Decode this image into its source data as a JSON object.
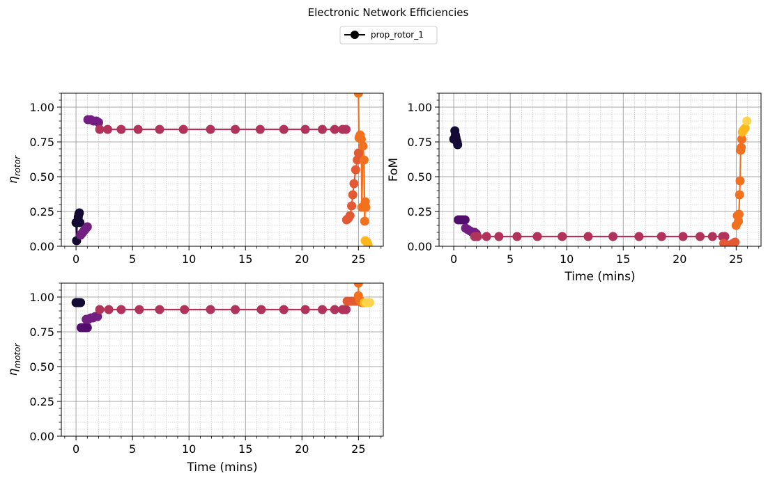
{
  "figure": {
    "title": "Electronic Network Efficiencies"
  },
  "legend": {
    "label": "prop_rotor_1",
    "color": "#000000"
  },
  "palette": {
    "segment_colors": [
      "#140b34",
      "#520e6d",
      "#721f81",
      "#b1325a",
      "#e35933",
      "#f1711f",
      "#fbb81d",
      "#fcd44f"
    ]
  },
  "chart_data": [
    {
      "type": "scatter",
      "id": "rotor",
      "ylabel_main": "η",
      "ylabel_sub": "rotor",
      "xlabel": "",
      "xlim": [
        -1.3,
        27.2
      ],
      "ylim": [
        0,
        1.1
      ],
      "xticks": [
        0,
        5,
        10,
        15,
        20,
        25
      ],
      "yticks": [
        "0.00",
        "0.25",
        "0.50",
        "0.75",
        "1.00"
      ],
      "grid": true,
      "series": [
        {
          "color_index": 0,
          "points": [
            [
              0.0,
              0.17
            ],
            [
              0.05,
              0.04
            ],
            [
              0.1,
              0.17
            ],
            [
              0.15,
              0.18
            ],
            [
              0.2,
              0.21
            ],
            [
              0.25,
              0.23
            ],
            [
              0.3,
              0.24
            ],
            [
              0.35,
              0.17
            ]
          ]
        },
        {
          "color_index": 2,
          "points": [
            [
              0.4,
              0.08
            ],
            [
              0.5,
              0.09
            ],
            [
              0.6,
              0.1
            ],
            [
              0.7,
              0.11
            ],
            [
              0.8,
              0.12
            ],
            [
              0.9,
              0.13
            ],
            [
              1.0,
              0.14
            ]
          ]
        },
        {
          "color_index": 2,
          "points": [
            [
              1.05,
              0.91
            ],
            [
              1.3,
              0.91
            ],
            [
              1.55,
              0.9
            ],
            [
              1.8,
              0.9
            ],
            [
              2.0,
              0.89
            ]
          ]
        },
        {
          "color_index": 3,
          "points": [
            [
              2.1,
              0.84
            ],
            [
              2.8,
              0.84
            ],
            [
              4.0,
              0.84
            ],
            [
              5.5,
              0.84
            ],
            [
              7.4,
              0.84
            ],
            [
              9.5,
              0.84
            ],
            [
              11.9,
              0.84
            ],
            [
              14.1,
              0.84
            ],
            [
              16.3,
              0.84
            ],
            [
              18.4,
              0.84
            ],
            [
              20.3,
              0.84
            ],
            [
              21.8,
              0.84
            ],
            [
              22.9,
              0.84
            ],
            [
              23.6,
              0.84
            ],
            [
              23.9,
              0.84
            ]
          ]
        },
        {
          "color_index": 4,
          "points": [
            [
              23.95,
              0.19
            ],
            [
              24.1,
              0.2
            ],
            [
              24.25,
              0.22
            ],
            [
              24.4,
              0.29
            ],
            [
              24.5,
              0.37
            ],
            [
              24.6,
              0.45
            ],
            [
              24.75,
              0.55
            ],
            [
              24.9,
              0.62
            ],
            [
              25.0,
              0.67
            ]
          ]
        },
        {
          "color_index": 5,
          "points": [
            [
              25.0,
              1.1
            ],
            [
              25.05,
              0.78
            ],
            [
              25.15,
              0.8
            ],
            [
              25.25,
              0.77
            ],
            [
              25.3,
              0.28
            ],
            [
              25.4,
              0.72
            ],
            [
              25.5,
              0.62
            ],
            [
              25.55,
              0.18
            ],
            [
              25.6,
              0.32
            ],
            [
              25.65,
              0.28
            ]
          ]
        },
        {
          "color_index": 6,
          "points": [
            [
              25.6,
              0.04
            ],
            [
              25.75,
              0.03
            ],
            [
              25.85,
              0.01
            ]
          ]
        }
      ]
    },
    {
      "type": "scatter",
      "id": "fom",
      "ylabel_main": "FoM",
      "ylabel_sub": "",
      "xlabel": "Time (mins)",
      "xlim": [
        -1.3,
        27.2
      ],
      "ylim": [
        0,
        1.1
      ],
      "xticks": [
        0,
        5,
        10,
        15,
        20,
        25
      ],
      "yticks": [
        "0.00",
        "0.25",
        "0.50",
        "0.75",
        "1.00"
      ],
      "grid": true,
      "series": [
        {
          "color_index": 0,
          "points": [
            [
              0.0,
              0.77
            ],
            [
              0.1,
              0.83
            ],
            [
              0.15,
              0.8
            ],
            [
              0.2,
              0.78
            ],
            [
              0.25,
              0.76
            ],
            [
              0.3,
              0.75
            ],
            [
              0.35,
              0.73
            ]
          ]
        },
        {
          "color_index": 1,
          "points": [
            [
              0.4,
              0.19
            ],
            [
              0.6,
              0.19
            ],
            [
              0.8,
              0.19
            ],
            [
              1.0,
              0.19
            ]
          ]
        },
        {
          "color_index": 2,
          "points": [
            [
              1.05,
              0.13
            ],
            [
              1.25,
              0.12
            ],
            [
              1.45,
              0.11
            ],
            [
              1.65,
              0.1
            ],
            [
              1.85,
              0.1
            ],
            [
              2.0,
              0.09
            ]
          ]
        },
        {
          "color_index": 3,
          "points": [
            [
              1.85,
              0.07
            ],
            [
              2.1,
              0.07
            ],
            [
              2.9,
              0.07
            ],
            [
              4.0,
              0.07
            ],
            [
              5.6,
              0.07
            ],
            [
              7.4,
              0.07
            ],
            [
              9.6,
              0.07
            ],
            [
              11.9,
              0.07
            ],
            [
              14.1,
              0.07
            ],
            [
              16.4,
              0.07
            ],
            [
              18.4,
              0.07
            ],
            [
              20.3,
              0.07
            ],
            [
              21.8,
              0.07
            ],
            [
              22.9,
              0.07
            ],
            [
              23.8,
              0.07
            ],
            [
              24.0,
              0.07
            ]
          ]
        },
        {
          "color_index": 4,
          "points": [
            [
              23.9,
              0.02
            ],
            [
              24.1,
              0.01
            ],
            [
              24.3,
              0.01
            ],
            [
              24.5,
              0.01
            ],
            [
              24.7,
              0.02
            ],
            [
              24.9,
              0.03
            ]
          ]
        },
        {
          "color_index": 5,
          "points": [
            [
              25.0,
              0.15
            ],
            [
              25.1,
              0.22
            ],
            [
              25.2,
              0.18
            ],
            [
              25.25,
              0.23
            ],
            [
              25.3,
              0.37
            ],
            [
              25.35,
              0.47
            ],
            [
              25.4,
              0.69
            ],
            [
              25.45,
              0.71
            ],
            [
              25.5,
              0.77
            ]
          ]
        },
        {
          "color_index": 6,
          "points": [
            [
              25.55,
              0.82
            ],
            [
              25.6,
              0.83
            ],
            [
              25.7,
              0.84
            ],
            [
              25.8,
              0.85
            ]
          ]
        },
        {
          "color_index": 7,
          "points": [
            [
              25.95,
              0.9
            ]
          ]
        }
      ]
    },
    {
      "type": "scatter",
      "id": "motor",
      "ylabel_main": "η",
      "ylabel_sub": "motor",
      "xlabel": "Time (mins)",
      "xlim": [
        -1.3,
        27.2
      ],
      "ylim": [
        0,
        1.1
      ],
      "xticks": [
        0,
        5,
        10,
        15,
        20,
        25
      ],
      "yticks": [
        "0.00",
        "0.25",
        "0.50",
        "0.75",
        "1.00"
      ],
      "grid": true,
      "series": [
        {
          "color_index": 0,
          "points": [
            [
              0.0,
              0.96
            ],
            [
              0.1,
              0.96
            ],
            [
              0.2,
              0.96
            ],
            [
              0.3,
              0.96
            ],
            [
              0.4,
              0.96
            ]
          ]
        },
        {
          "color_index": 1,
          "points": [
            [
              0.45,
              0.78
            ],
            [
              0.65,
              0.78
            ],
            [
              0.85,
              0.78
            ],
            [
              1.0,
              0.78
            ]
          ]
        },
        {
          "color_index": 2,
          "points": [
            [
              0.9,
              0.84
            ],
            [
              1.1,
              0.84
            ],
            [
              1.3,
              0.85
            ],
            [
              1.5,
              0.85
            ],
            [
              1.7,
              0.86
            ],
            [
              1.9,
              0.86
            ]
          ]
        },
        {
          "color_index": 3,
          "points": [
            [
              2.1,
              0.91
            ],
            [
              2.9,
              0.91
            ],
            [
              4.0,
              0.91
            ],
            [
              5.6,
              0.91
            ],
            [
              7.4,
              0.91
            ],
            [
              9.6,
              0.91
            ],
            [
              11.9,
              0.91
            ],
            [
              14.1,
              0.91
            ],
            [
              16.4,
              0.91
            ],
            [
              18.4,
              0.91
            ],
            [
              20.3,
              0.91
            ],
            [
              21.8,
              0.91
            ],
            [
              22.9,
              0.91
            ],
            [
              23.6,
              0.91
            ],
            [
              23.9,
              0.91
            ]
          ]
        },
        {
          "color_index": 4,
          "points": [
            [
              24.0,
              0.97
            ],
            [
              24.2,
              0.97
            ],
            [
              24.4,
              0.97
            ],
            [
              24.6,
              0.97
            ],
            [
              24.8,
              0.97
            ]
          ]
        },
        {
          "color_index": 5,
          "points": [
            [
              25.0,
              1.1
            ],
            [
              25.0,
              1.01
            ],
            [
              25.1,
              0.98
            ],
            [
              25.2,
              0.97
            ],
            [
              25.3,
              0.96
            ],
            [
              25.4,
              0.96
            ]
          ]
        },
        {
          "color_index": 6,
          "points": [
            [
              25.5,
              0.96
            ],
            [
              25.6,
              0.96
            ]
          ]
        },
        {
          "color_index": 7,
          "points": [
            [
              25.7,
              0.96
            ],
            [
              25.85,
              0.96
            ],
            [
              26.0,
              0.96
            ]
          ]
        }
      ]
    }
  ]
}
